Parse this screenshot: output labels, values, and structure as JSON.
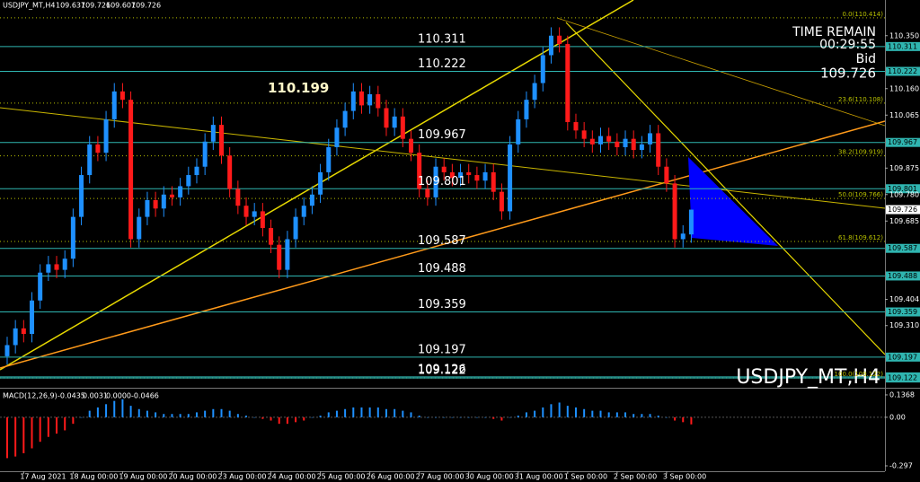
{
  "chart_data": [
    {
      "type": "candlestick",
      "title": "USDJPY_MT,H4",
      "timer_label": "TIME REMAIN",
      "timer": "00:29:55",
      "bid_label": "Bid",
      "open": [
        109.2,
        109.24,
        109.3,
        109.28,
        109.4,
        109.5,
        109.53,
        109.51,
        109.55,
        109.7,
        109.85,
        109.96,
        109.93,
        110.05,
        110.15,
        110.12,
        109.62,
        109.7,
        109.76,
        109.73,
        109.78,
        109.77,
        109.81,
        109.85,
        109.88,
        109.97,
        110.03,
        109.92,
        109.8,
        109.74,
        109.7,
        109.72,
        109.66,
        109.6,
        109.51,
        109.62,
        109.7,
        109.74,
        109.78,
        109.86,
        109.95,
        110.02,
        110.08,
        110.15,
        110.1,
        110.14,
        110.09,
        110.02,
        110.06,
        109.98,
        109.93,
        109.8,
        109.77,
        109.88,
        109.86,
        109.84,
        109.86,
        109.85,
        109.83,
        109.86,
        109.79,
        109.72,
        109.96,
        110.05,
        110.12,
        110.18,
        110.28,
        110.35,
        110.32,
        110.04,
        110.01,
        109.98,
        109.96,
        109.99,
        109.97,
        109.95,
        109.98,
        109.94,
        109.96,
        110.0,
        109.88,
        109.82,
        109.62,
        109.637
      ],
      "high": [
        109.27,
        109.33,
        109.33,
        109.43,
        109.53,
        109.56,
        109.56,
        109.58,
        109.73,
        109.88,
        109.99,
        109.99,
        110.08,
        110.18,
        110.18,
        110.15,
        109.73,
        109.79,
        109.79,
        109.81,
        109.81,
        109.84,
        109.88,
        109.91,
        110.0,
        110.06,
        110.06,
        109.95,
        109.83,
        109.77,
        109.75,
        109.75,
        109.69,
        109.63,
        109.65,
        109.73,
        109.77,
        109.81,
        109.89,
        109.98,
        110.05,
        110.11,
        110.18,
        110.18,
        110.17,
        110.17,
        110.12,
        110.09,
        110.09,
        110.01,
        109.96,
        109.83,
        109.91,
        109.91,
        109.89,
        109.89,
        109.89,
        109.88,
        109.89,
        109.89,
        109.82,
        109.99,
        110.08,
        110.15,
        110.21,
        110.31,
        110.38,
        110.38,
        110.35,
        110.07,
        110.04,
        110.01,
        110.02,
        110.02,
        110.0,
        110.01,
        110.01,
        109.99,
        110.03,
        110.03,
        109.91,
        109.85,
        109.67,
        109.726
      ],
      "low": [
        109.17,
        109.21,
        109.25,
        109.25,
        109.37,
        109.47,
        109.48,
        109.48,
        109.52,
        109.67,
        109.82,
        109.9,
        109.9,
        110.02,
        110.09,
        109.59,
        109.59,
        109.67,
        109.7,
        109.7,
        109.74,
        109.74,
        109.78,
        109.82,
        109.85,
        109.94,
        109.89,
        109.77,
        109.71,
        109.67,
        109.67,
        109.63,
        109.57,
        109.48,
        109.48,
        109.59,
        109.67,
        109.71,
        109.75,
        109.83,
        109.92,
        109.99,
        110.05,
        110.07,
        110.07,
        110.06,
        109.99,
        109.99,
        109.95,
        109.9,
        109.77,
        109.74,
        109.74,
        109.83,
        109.81,
        109.81,
        109.82,
        109.8,
        109.8,
        109.76,
        109.69,
        109.69,
        109.93,
        110.02,
        110.09,
        110.15,
        110.25,
        110.29,
        110.01,
        109.98,
        109.95,
        109.93,
        109.93,
        109.94,
        109.92,
        109.92,
        109.91,
        109.91,
        109.93,
        109.85,
        109.79,
        109.59,
        109.59,
        109.607
      ],
      "close": [
        109.24,
        109.3,
        109.28,
        109.4,
        109.5,
        109.53,
        109.51,
        109.55,
        109.7,
        109.85,
        109.96,
        109.93,
        110.05,
        110.15,
        110.12,
        109.62,
        109.7,
        109.76,
        109.73,
        109.78,
        109.77,
        109.81,
        109.85,
        109.88,
        109.97,
        110.03,
        109.92,
        109.8,
        109.74,
        109.7,
        109.72,
        109.66,
        109.6,
        109.51,
        109.62,
        109.7,
        109.74,
        109.78,
        109.86,
        109.95,
        110.02,
        110.08,
        110.15,
        110.1,
        110.14,
        110.09,
        110.02,
        110.06,
        109.98,
        109.93,
        109.8,
        109.77,
        109.88,
        109.86,
        109.84,
        109.86,
        109.85,
        109.83,
        109.86,
        109.79,
        109.72,
        109.96,
        110.05,
        110.12,
        110.18,
        110.28,
        110.35,
        110.32,
        110.04,
        110.01,
        109.98,
        109.96,
        109.99,
        109.97,
        109.95,
        109.98,
        109.94,
        109.96,
        110.0,
        109.88,
        109.82,
        109.62,
        109.64,
        109.726
      ],
      "up_color": "#1e90ff",
      "down_color": "#ff1a1a",
      "xlim": [
        -0.87,
        106.5
      ],
      "ylim": [
        109.087,
        110.478
      ],
      "xticks": [
        {
          "value": 2,
          "label": "17 Aug 2021"
        },
        {
          "value": 8,
          "label": "18 Aug 00:00"
        },
        {
          "value": 14,
          "label": "19 Aug 00:00"
        },
        {
          "value": 20,
          "label": "20 Aug 00:00"
        },
        {
          "value": 26,
          "label": "23 Aug 00:00"
        },
        {
          "value": 32,
          "label": "24 Aug 00:00"
        },
        {
          "value": 38,
          "label": "25 Aug 00:00"
        },
        {
          "value": 44,
          "label": "26 Aug 00:00"
        },
        {
          "value": 50,
          "label": "27 Aug 00:00"
        },
        {
          "value": 56,
          "label": "30 Aug 00:00"
        },
        {
          "value": 62,
          "label": "31 Aug 00:00"
        },
        {
          "value": 68,
          "label": "1 Sep 00:00"
        },
        {
          "value": 74,
          "label": "2 Sep 00:00"
        },
        {
          "value": 80,
          "label": "3 Sep 00:00"
        }
      ],
      "yticks": [
        {
          "value": 110.35,
          "label": "110.350"
        },
        {
          "value": 110.16,
          "label": "110.160"
        },
        {
          "value": 110.065,
          "label": "110.065"
        },
        {
          "value": 109.875,
          "label": "109.875"
        },
        {
          "value": 109.78,
          "label": "109.780"
        },
        {
          "value": 109.685,
          "label": "109.685"
        },
        {
          "value": 109.404,
          "label": "109.404"
        },
        {
          "value": 109.31,
          "label": "109.310"
        }
      ],
      "levels": [
        110.311,
        110.222,
        109.967,
        109.801,
        109.587,
        109.488,
        109.359,
        109.197,
        109.126,
        109.122
      ],
      "level_color": "#2fb5b0",
      "fib_levels": [
        {
          "value": 110.414,
          "label": "0.0(110.414)"
        },
        {
          "value": 110.108,
          "label": "23.6(110.108)"
        },
        {
          "value": 109.919,
          "label": "38.2(109.919)"
        },
        {
          "value": 109.766,
          "label": "50.0(109.766)"
        },
        {
          "value": 109.612,
          "label": "61.8(109.612)"
        },
        {
          "value": 109.122,
          "label": "100.0(109.122)"
        }
      ],
      "fib_color": "#b8c000",
      "annotations": [
        {
          "text": "110.199",
          "value": 110.199
        }
      ]
    },
    {
      "type": "bar",
      "title": "MACD(12,26,9)",
      "readout": [
        -0.0435,
        0.0031,
        {
          "value": 0,
          "label": "0.0000"
        },
        -0.0466
      ],
      "values": [
        -0.25,
        -0.24,
        -0.22,
        -0.19,
        -0.15,
        -0.12,
        -0.1,
        -0.08,
        -0.04,
        0.0,
        0.04,
        0.06,
        0.08,
        0.1,
        0.11,
        0.07,
        0.05,
        0.04,
        0.03,
        0.02,
        0.02,
        0.02,
        0.02,
        0.03,
        0.04,
        0.05,
        0.05,
        0.04,
        0.02,
        0.01,
        0.0,
        -0.01,
        -0.02,
        -0.04,
        -0.04,
        -0.03,
        -0.02,
        0.0,
        0.01,
        0.03,
        0.04,
        0.05,
        0.06,
        0.06,
        0.06,
        0.06,
        0.05,
        0.05,
        0.04,
        0.03,
        0.01,
        0.0,
        0.0,
        0.0,
        0.0,
        0.0,
        0.0,
        0.0,
        0.0,
        -0.01,
        -0.02,
        0.0,
        0.01,
        0.03,
        0.04,
        0.06,
        0.08,
        0.09,
        0.07,
        0.06,
        0.05,
        0.04,
        0.04,
        0.03,
        0.03,
        0.03,
        0.02,
        0.02,
        0.02,
        0.01,
        0.0,
        -0.02,
        -0.03,
        -0.0435
      ],
      "pos_color": "#1e90ff",
      "neg_color": "#ff1a1a",
      "ylim": [
        -0.33,
        0.164
      ],
      "yticks": [
        0.1368,
        {
          "value": 0,
          "label": "0.00"
        },
        -0.297
      ]
    }
  ]
}
